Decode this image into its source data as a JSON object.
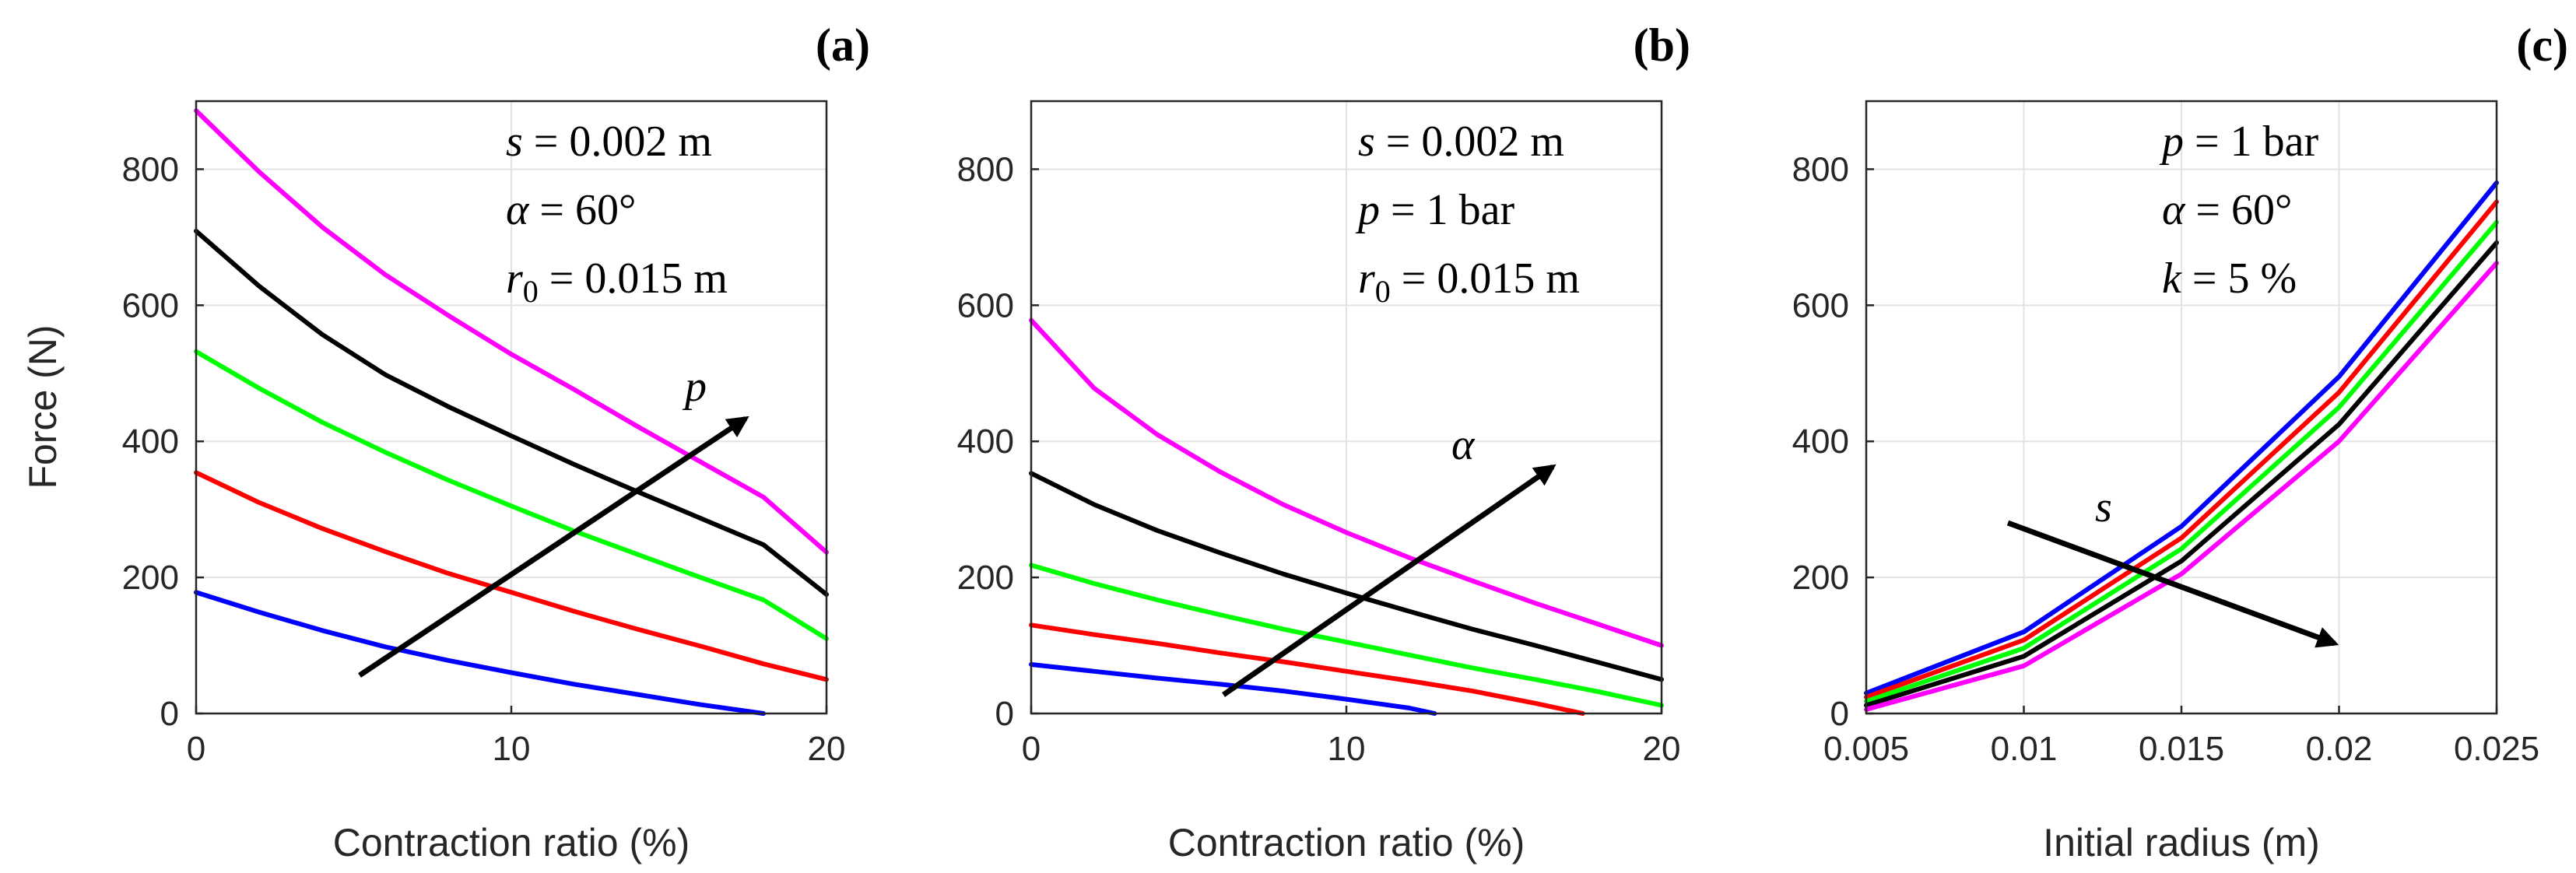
{
  "chart_data": [
    {
      "type": "line",
      "panel_label": "(a)",
      "xlabel": "Contraction ratio (%)",
      "ylabel": "Force (N)",
      "xlim": [
        0,
        20
      ],
      "ylim": [
        0,
        900
      ],
      "xticks": [
        0,
        10,
        20
      ],
      "xtick_labels": [
        "0",
        "10",
        "20"
      ],
      "yticks": [
        0,
        200,
        400,
        600,
        800
      ],
      "ytick_labels": [
        "0",
        "200",
        "400",
        "600",
        "800"
      ],
      "grid": true,
      "annotations": [
        {
          "var": "s",
          "rest": " = 0.002 m"
        },
        {
          "var": "α",
          "rest": " = 60°"
        },
        {
          "var": "r",
          "sub": "0",
          "rest": " = 0.015 m"
        }
      ],
      "arrow_label": "p",
      "series": [
        {
          "name": "blue",
          "color": "#0000ff",
          "x": [
            0,
            2,
            4,
            6,
            8,
            10,
            12,
            14,
            16,
            18
          ],
          "y": [
            178,
            149,
            122,
            98,
            78,
            60,
            43,
            28,
            13,
            0
          ]
        },
        {
          "name": "red",
          "color": "#ff0000",
          "x": [
            0,
            2,
            4,
            6,
            8,
            10,
            12,
            14,
            16,
            18,
            20
          ],
          "y": [
            354,
            310,
            272,
            238,
            206,
            178,
            150,
            124,
            99,
            73,
            50
          ]
        },
        {
          "name": "green",
          "color": "#00ff00",
          "x": [
            0,
            2,
            4,
            6,
            8,
            10,
            12,
            14,
            16,
            18,
            20
          ],
          "y": [
            532,
            478,
            428,
            384,
            343,
            305,
            268,
            234,
            200,
            167,
            110
          ]
        },
        {
          "name": "black",
          "color": "#000000",
          "x": [
            0,
            2,
            4,
            6,
            8,
            10,
            12,
            14,
            16,
            18,
            20
          ],
          "y": [
            709,
            628,
            557,
            498,
            451,
            408,
            366,
            326,
            287,
            248,
            175
          ]
        },
        {
          "name": "magenta",
          "color": "#ff00ff",
          "x": [
            0,
            2,
            4,
            6,
            8,
            10,
            12,
            14,
            16,
            18,
            20
          ],
          "y": [
            886,
            796,
            715,
            645,
            585,
            528,
            476,
            422,
            370,
            318,
            237
          ]
        }
      ]
    },
    {
      "type": "line",
      "panel_label": "(b)",
      "xlabel": "Contraction ratio (%)",
      "ylabel": "",
      "xlim": [
        0,
        20
      ],
      "ylim": [
        0,
        900
      ],
      "xticks": [
        0,
        10,
        20
      ],
      "xtick_labels": [
        "0",
        "10",
        "20"
      ],
      "yticks": [
        0,
        200,
        400,
        600,
        800
      ],
      "ytick_labels": [
        "0",
        "200",
        "400",
        "600",
        "800"
      ],
      "grid": true,
      "annotations": [
        {
          "var": "s",
          "rest": " = 0.002 m"
        },
        {
          "var": "p",
          "rest": " = 1 bar"
        },
        {
          "var": "r",
          "sub": "0",
          "rest": " = 0.015 m"
        }
      ],
      "arrow_label": "α",
      "series": [
        {
          "name": "blue",
          "color": "#0000ff",
          "x": [
            0,
            2,
            4,
            6,
            8,
            10,
            12,
            12.8
          ],
          "y": [
            72,
            62,
            52,
            43,
            33,
            21,
            8,
            0
          ]
        },
        {
          "name": "red",
          "color": "#ff0000",
          "x": [
            0,
            2,
            4,
            6,
            8,
            10,
            12,
            14,
            16,
            17.5
          ],
          "y": [
            130,
            116,
            103,
            89,
            76,
            62,
            48,
            33,
            15,
            0
          ]
        },
        {
          "name": "green",
          "color": "#00ff00",
          "x": [
            0,
            2,
            4,
            6,
            8,
            10,
            12,
            14,
            16,
            18,
            20
          ],
          "y": [
            218,
            191,
            167,
            145,
            124,
            105,
            86,
            67,
            50,
            32,
            12
          ]
        },
        {
          "name": "black",
          "color": "#000000",
          "x": [
            0,
            2,
            4,
            6,
            8,
            10,
            12,
            14,
            16,
            18,
            20
          ],
          "y": [
            353,
            307,
            269,
            236,
            205,
            177,
            150,
            124,
            100,
            75,
            50
          ]
        },
        {
          "name": "magenta",
          "color": "#ff00ff",
          "x": [
            0,
            2,
            4,
            6,
            8,
            10,
            12,
            14,
            16,
            18,
            20
          ],
          "y": [
            578,
            478,
            410,
            355,
            307,
            266,
            229,
            195,
            162,
            131,
            100
          ]
        }
      ]
    },
    {
      "type": "line",
      "panel_label": "(c)",
      "xlabel": "Initial radius (m)",
      "ylabel": "",
      "xlim": [
        0.005,
        0.025
      ],
      "ylim": [
        0,
        900
      ],
      "xticks": [
        0.005,
        0.01,
        0.015,
        0.02,
        0.025
      ],
      "xtick_labels": [
        "0.005",
        "0.01",
        "0.015",
        "0.02",
        "0.025"
      ],
      "yticks": [
        0,
        200,
        400,
        600,
        800
      ],
      "ytick_labels": [
        "0",
        "200",
        "400",
        "600",
        "800"
      ],
      "grid": true,
      "annotations": [
        {
          "var": "p",
          "rest": " = 1 bar"
        },
        {
          "var": "α",
          "rest": " = 60°"
        },
        {
          "var": "k",
          "rest": " = 5 %"
        }
      ],
      "arrow_label": "s",
      "series": [
        {
          "name": "blue",
          "color": "#0000ff",
          "x": [
            0.005,
            0.01,
            0.015,
            0.02,
            0.025
          ],
          "y": [
            30,
            120,
            275,
            495,
            780
          ]
        },
        {
          "name": "red",
          "color": "#ff0000",
          "x": [
            0.005,
            0.01,
            0.015,
            0.02,
            0.025
          ],
          "y": [
            24,
            108,
            258,
            472,
            752
          ]
        },
        {
          "name": "green",
          "color": "#00ff00",
          "x": [
            0.005,
            0.01,
            0.015,
            0.02,
            0.025
          ],
          "y": [
            18,
            96,
            242,
            450,
            722
          ]
        },
        {
          "name": "black",
          "color": "#000000",
          "x": [
            0.005,
            0.01,
            0.015,
            0.02,
            0.025
          ],
          "y": [
            12,
            84,
            224,
            425,
            692
          ]
        },
        {
          "name": "magenta",
          "color": "#ff00ff",
          "x": [
            0.005,
            0.01,
            0.015,
            0.02,
            0.025
          ],
          "y": [
            6,
            70,
            205,
            400,
            662
          ]
        }
      ]
    }
  ]
}
